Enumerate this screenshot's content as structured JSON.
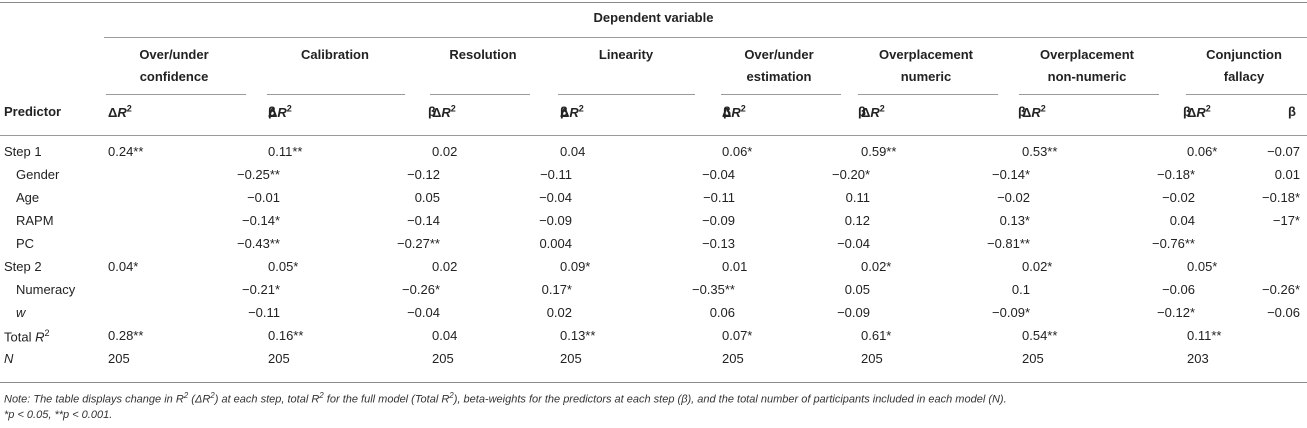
{
  "table": {
    "dependent_variable": "Dependent variable",
    "predictor_header": "Predictor",
    "dr2_header": "ΔR",
    "dr2_sup": "2",
    "beta_header": "β",
    "groups": [
      {
        "line1": "Over/under",
        "line2": "confidence"
      },
      {
        "line1": "Calibration",
        "line2": ""
      },
      {
        "line1": "Resolution",
        "line2": ""
      },
      {
        "line1": "Linearity",
        "line2": ""
      },
      {
        "line1": "Over/under",
        "line2": "estimation"
      },
      {
        "line1": "Overplacement",
        "line2": "numeric"
      },
      {
        "line1": "Overplacement",
        "line2": "non-numeric"
      },
      {
        "line1": "Conjunction",
        "line2": "fallacy"
      }
    ],
    "rows": [
      {
        "label": "Step 1",
        "indent": false,
        "italic": false,
        "cells": [
          "0.24**",
          "",
          "0.11**",
          "",
          "0.02",
          "",
          "0.04",
          "",
          "0.06*",
          "",
          "0.59**",
          "",
          "0.53**",
          "",
          "0.06*",
          "−0.07"
        ]
      },
      {
        "label": "Gender",
        "indent": true,
        "italic": false,
        "cells": [
          "",
          "−0.25**",
          "",
          "−0.12",
          "",
          "−0.11",
          "",
          "−0.04",
          "",
          "−0.20*",
          "",
          "−0.14*",
          "",
          "−0.18*",
          "",
          "0.01"
        ]
      },
      {
        "label": "Age",
        "indent": true,
        "italic": false,
        "cells": [
          "",
          "−0.01",
          "",
          "0.05",
          "",
          "−0.04",
          "",
          "−0.11",
          "",
          "0.11",
          "",
          "−0.02",
          "",
          "−0.02",
          "",
          "−0.18*"
        ]
      },
      {
        "label": "RAPM",
        "indent": true,
        "italic": false,
        "cells": [
          "",
          "−0.14*",
          "",
          "−0.14",
          "",
          "−0.09",
          "",
          "−0.09",
          "",
          "0.12",
          "",
          "0.13*",
          "",
          "0.04",
          "",
          "−17*"
        ]
      },
      {
        "label": "PC",
        "indent": true,
        "italic": false,
        "cells": [
          "",
          "−0.43**",
          "",
          "−0.27**",
          "",
          "0.004",
          "",
          "−0.13",
          "",
          "−0.04",
          "",
          "−0.81**",
          "",
          "−0.76**",
          "",
          ""
        ]
      },
      {
        "label": "Step 2",
        "indent": false,
        "italic": false,
        "cells": [
          "0.04*",
          "",
          "0.05*",
          "",
          "0.02",
          "",
          "0.09*",
          "",
          "0.01",
          "",
          "0.02*",
          "",
          "0.02*",
          "",
          "0.05*",
          ""
        ]
      },
      {
        "label": "Numeracy",
        "indent": true,
        "italic": false,
        "cells": [
          "",
          "−0.21*",
          "",
          "−0.26*",
          "",
          "0.17*",
          "",
          "−0.35**",
          "",
          "0.05",
          "",
          "0.1",
          "",
          "−0.06",
          "",
          "−0.26*"
        ]
      },
      {
        "label": "w",
        "indent": true,
        "italic": true,
        "cells": [
          "",
          "−0.11",
          "",
          "−0.04",
          "",
          "0.02",
          "",
          "0.06",
          "",
          "−0.09",
          "",
          "−0.09*",
          "",
          "−0.12*",
          "",
          "−0.06"
        ]
      },
      {
        "label": "Total R",
        "label_sup": "2",
        "indent": false,
        "italic": false,
        "cells": [
          "0.28**",
          "",
          "0.16**",
          "",
          "0.04",
          "",
          "0.13**",
          "",
          "0.07*",
          "",
          "0.61*",
          "",
          "0.54**",
          "",
          "0.11**",
          ""
        ]
      },
      {
        "label": "N",
        "indent": false,
        "italic": true,
        "cells": [
          "205",
          "",
          "205",
          "",
          "205",
          "",
          "205",
          "",
          "205",
          "",
          "205",
          "",
          "205",
          "",
          "203",
          ""
        ]
      }
    ]
  },
  "note": {
    "line1_parts": [
      "Note: The table displays change in R",
      "2",
      " (ΔR",
      "2",
      ") at each step, total R",
      "2",
      " for the full model (Total R",
      "2",
      "), beta-weights for the predictors at each step (β), and the total number of participants included in each model (N)."
    ],
    "line2": "*p < 0.05, **p < 0.001."
  }
}
